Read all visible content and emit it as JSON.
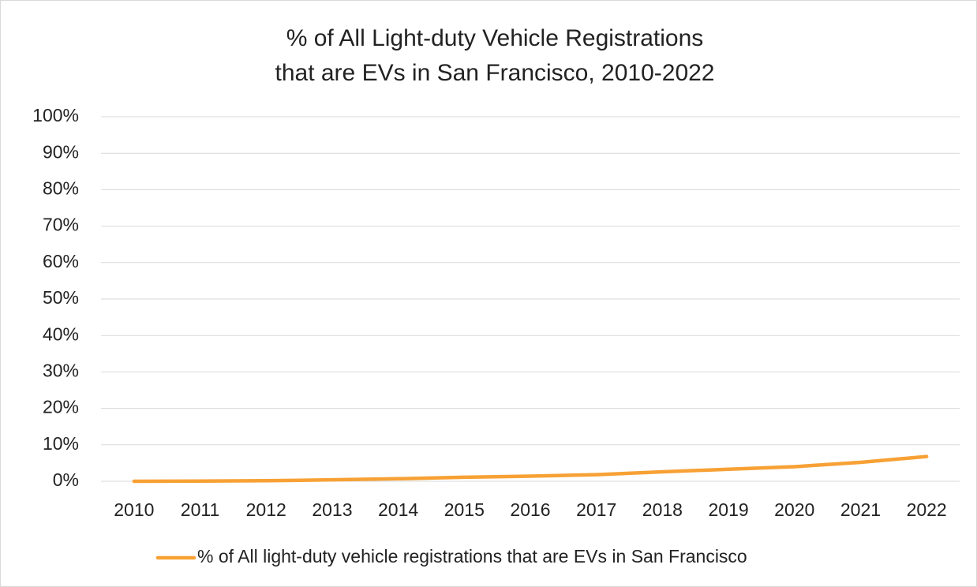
{
  "chart_data": {
    "type": "line",
    "title": [
      "% of All Light-duty Vehicle Registrations",
      "that are EVs in San Francisco, 2010-2022"
    ],
    "categories": [
      "2010",
      "2011",
      "2012",
      "2013",
      "2014",
      "2015",
      "2016",
      "2017",
      "2018",
      "2019",
      "2020",
      "2021",
      "2022"
    ],
    "series": [
      {
        "name": "% of All light-duty vehicle registrations that are EVs in San Francisco",
        "color": "#f7a135",
        "values": [
          0,
          0.05,
          0.15,
          0.4,
          0.7,
          1.1,
          1.4,
          1.8,
          2.6,
          3.3,
          4.0,
          5.2,
          6.8
        ]
      }
    ],
    "ylim": [
      0,
      100
    ],
    "yticks": [
      {
        "value": 0,
        "label": "0%"
      },
      {
        "value": 10,
        "label": "10%"
      },
      {
        "value": 20,
        "label": "20%"
      },
      {
        "value": 30,
        "label": "30%"
      },
      {
        "value": 40,
        "label": "40%"
      },
      {
        "value": 50,
        "label": "50%"
      },
      {
        "value": 60,
        "label": "60%"
      },
      {
        "value": 70,
        "label": "70%"
      },
      {
        "value": 80,
        "label": "80%"
      },
      {
        "value": 90,
        "label": "90%"
      },
      {
        "value": 100,
        "label": "100%"
      }
    ],
    "grid": true,
    "legend": "bottom"
  }
}
